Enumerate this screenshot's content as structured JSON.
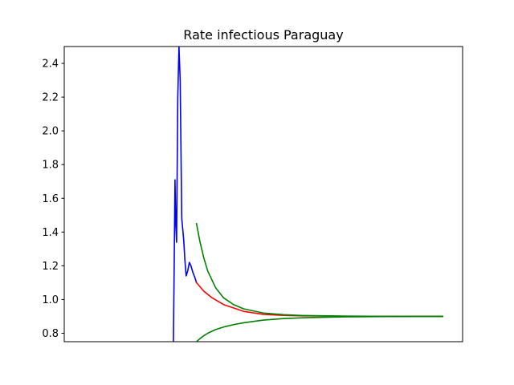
{
  "chart_data": {
    "type": "line",
    "title": "Rate infectious Paraguay",
    "xlabel": "",
    "ylabel": "",
    "xlim": [
      0,
      100
    ],
    "ylim": [
      0.75,
      2.5
    ],
    "x_ticks_visible": false,
    "y_ticks": [
      0.8,
      1.0,
      1.2,
      1.4,
      1.6,
      1.8,
      2.0,
      2.2,
      2.4
    ],
    "y_tick_labels": [
      "0.8",
      "1.0",
      "1.2",
      "1.4",
      "1.6",
      "1.8",
      "2.0",
      "2.2",
      "2.4"
    ],
    "grid": false,
    "legend": "none",
    "series": [
      {
        "color": "#0000ff",
        "x": [
          27.4,
          27.6,
          27.8,
          28.0,
          28.2,
          28.5,
          28.8,
          29.1,
          29.5,
          30.0,
          30.3,
          30.6,
          31.0,
          31.4,
          31.8,
          32.3,
          32.8,
          33.2
        ],
        "y": [
          0.75,
          1.2,
          1.71,
          1.45,
          1.34,
          2.2,
          2.5,
          2.3,
          1.48,
          1.35,
          1.23,
          1.14,
          1.17,
          1.22,
          1.2,
          1.16,
          1.13,
          1.1
        ]
      },
      {
        "color": "#ff0000",
        "x": [
          33.2,
          35,
          37,
          40,
          45,
          50,
          55,
          60,
          70,
          80,
          90,
          95
        ],
        "y": [
          1.1,
          1.05,
          1.012,
          0.97,
          0.93,
          0.912,
          0.906,
          0.903,
          0.901,
          0.9,
          0.9,
          0.9
        ]
      },
      {
        "color": "#008000",
        "x": [
          33.2,
          34,
          35,
          36,
          38,
          40,
          42.5,
          45,
          50,
          55,
          60,
          70,
          80,
          90,
          95
        ],
        "y": [
          1.45,
          1.35,
          1.25,
          1.17,
          1.07,
          1.01,
          0.97,
          0.945,
          0.92,
          0.91,
          0.905,
          0.902,
          0.9,
          0.9,
          0.9
        ]
      },
      {
        "color": "#008000",
        "x": [
          33.2,
          34,
          35,
          36,
          38,
          40,
          42.5,
          45,
          50,
          55,
          60,
          70,
          80,
          90,
          95
        ],
        "y": [
          0.75,
          0.767,
          0.785,
          0.8,
          0.822,
          0.837,
          0.851,
          0.862,
          0.878,
          0.887,
          0.892,
          0.897,
          0.899,
          0.9,
          0.9
        ]
      }
    ]
  }
}
